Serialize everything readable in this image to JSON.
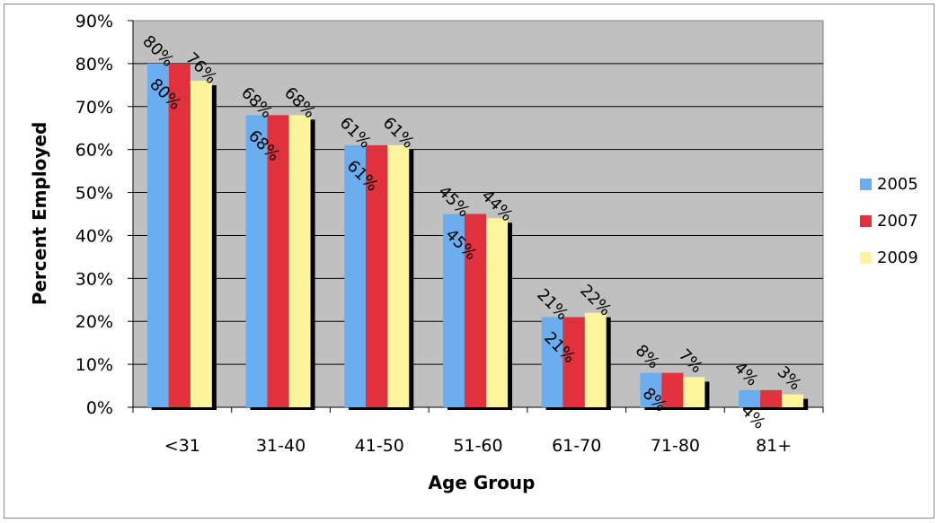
{
  "chart_data": {
    "type": "bar",
    "title": "",
    "xlabel": "Age Group",
    "ylabel": "Percent Employed",
    "categories": [
      "<31",
      "31-40",
      "41-50",
      "51-60",
      "61-70",
      "71-80",
      "81+"
    ],
    "series": [
      {
        "name": "2005",
        "color": "#6aaef0",
        "values": [
          80,
          68,
          61,
          45,
          21,
          8,
          4
        ],
        "labels": [
          "80%",
          "68%",
          "61%",
          "45%",
          "21%",
          "8%",
          "4%"
        ]
      },
      {
        "name": "2007",
        "color": "#e0313c",
        "values": [
          80,
          68,
          61,
          45,
          21,
          8,
          4
        ],
        "labels": [
          "80%",
          "68%",
          "61%",
          "45%",
          "21%",
          "8%",
          "4%"
        ]
      },
      {
        "name": "2009",
        "color": "#fdf59c",
        "values": [
          76,
          68,
          61,
          44,
          22,
          7,
          3
        ],
        "labels": [
          "76%",
          "68%",
          "61%",
          "44%",
          "22%",
          "7%",
          "3%"
        ]
      }
    ],
    "ylim": [
      0,
      90
    ],
    "yticks": [
      "0%",
      "10%",
      "20%",
      "30%",
      "40%",
      "50%",
      "60%",
      "70%",
      "80%",
      "90%"
    ],
    "grid": true,
    "plot_background": "#c0c0c0",
    "legend_position": "right"
  }
}
